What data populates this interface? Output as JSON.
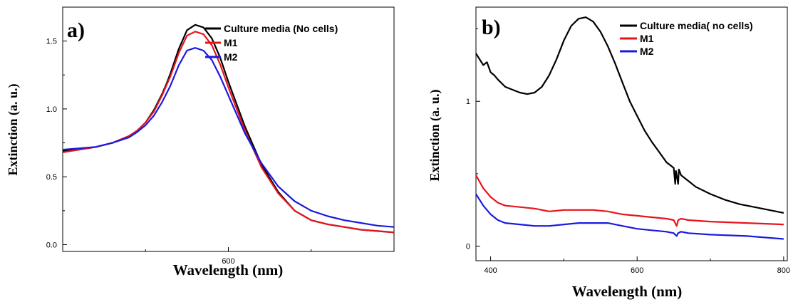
{
  "chart_data": [
    {
      "type": "line",
      "panel_label": "a)",
      "xlabel": "Wavelength (nm)",
      "ylabel": "Extinction (a. u.)",
      "xlim": [
        400,
        800
      ],
      "ylim": [
        -0.05,
        1.75
      ],
      "xticks": [
        600
      ],
      "yticks": [
        0.0,
        0.5,
        1.0,
        1.5
      ],
      "ytick_labels": [
        "0.0",
        "0.5",
        "1.0",
        "1.5"
      ],
      "legend_position": "top-right",
      "series": [
        {
          "name": "Culture media (No cells)",
          "color": "#000000",
          "x": [
            400,
            420,
            440,
            460,
            480,
            490,
            500,
            510,
            515,
            520,
            525,
            530,
            540,
            550,
            560,
            570,
            580,
            590,
            600,
            620,
            640,
            660,
            680,
            700,
            720,
            740,
            760,
            780,
            800
          ],
          "values": [
            0.69,
            0.7,
            0.72,
            0.75,
            0.8,
            0.84,
            0.9,
            0.99,
            1.05,
            1.11,
            1.18,
            1.26,
            1.44,
            1.58,
            1.62,
            1.6,
            1.52,
            1.38,
            1.2,
            0.87,
            0.59,
            0.39,
            0.25,
            0.18,
            0.15,
            0.13,
            0.11,
            0.1,
            0.09
          ]
        },
        {
          "name": "M1",
          "color": "#e8141b",
          "x": [
            400,
            420,
            440,
            460,
            480,
            490,
            500,
            510,
            515,
            520,
            525,
            530,
            540,
            550,
            560,
            570,
            580,
            590,
            600,
            620,
            640,
            660,
            680,
            700,
            720,
            740,
            760,
            780,
            800
          ],
          "values": [
            0.68,
            0.7,
            0.72,
            0.75,
            0.8,
            0.84,
            0.9,
            0.98,
            1.04,
            1.1,
            1.17,
            1.24,
            1.41,
            1.54,
            1.57,
            1.55,
            1.47,
            1.33,
            1.16,
            0.84,
            0.57,
            0.38,
            0.25,
            0.18,
            0.15,
            0.13,
            0.11,
            0.1,
            0.09
          ]
        },
        {
          "name": "M2",
          "color": "#1a1adf",
          "x": [
            400,
            420,
            440,
            460,
            480,
            490,
            500,
            510,
            515,
            520,
            525,
            530,
            540,
            550,
            560,
            570,
            580,
            590,
            600,
            620,
            640,
            660,
            680,
            700,
            720,
            740,
            760,
            780,
            800
          ],
          "values": [
            0.7,
            0.71,
            0.72,
            0.75,
            0.79,
            0.83,
            0.88,
            0.95,
            1.0,
            1.05,
            1.11,
            1.17,
            1.32,
            1.43,
            1.45,
            1.43,
            1.36,
            1.24,
            1.1,
            0.82,
            0.6,
            0.43,
            0.32,
            0.25,
            0.21,
            0.18,
            0.16,
            0.14,
            0.13
          ]
        }
      ]
    },
    {
      "type": "line",
      "panel_label": "b)",
      "xlabel": "Wavelength (nm)",
      "ylabel": "Extinction (a. u.)",
      "xlim": [
        380,
        805
      ],
      "ylim": [
        -0.1,
        1.65
      ],
      "xticks": [
        400,
        600,
        800
      ],
      "xtick_labels": [
        "400",
        "600",
        "800"
      ],
      "yticks": [
        0,
        1
      ],
      "ytick_labels": [
        "0",
        "1"
      ],
      "legend_position": "top-right",
      "series": [
        {
          "name": "Culture media( no cells)",
          "color": "#000000",
          "x": [
            380,
            385,
            390,
            395,
            400,
            405,
            410,
            420,
            430,
            440,
            450,
            460,
            470,
            480,
            490,
            500,
            510,
            520,
            530,
            540,
            550,
            560,
            570,
            580,
            590,
            600,
            610,
            620,
            630,
            640,
            650,
            652,
            653,
            656,
            657,
            660,
            670,
            680,
            700,
            720,
            740,
            760,
            780,
            800
          ],
          "values": [
            1.33,
            1.29,
            1.25,
            1.27,
            1.2,
            1.18,
            1.15,
            1.1,
            1.08,
            1.06,
            1.05,
            1.06,
            1.1,
            1.18,
            1.29,
            1.42,
            1.52,
            1.57,
            1.58,
            1.55,
            1.48,
            1.38,
            1.26,
            1.13,
            1.0,
            0.9,
            0.8,
            0.72,
            0.65,
            0.58,
            0.54,
            0.43,
            0.52,
            0.43,
            0.53,
            0.49,
            0.45,
            0.41,
            0.36,
            0.32,
            0.29,
            0.27,
            0.25,
            0.23
          ]
        },
        {
          "name": "M1",
          "color": "#e8141b",
          "x": [
            380,
            390,
            400,
            410,
            420,
            440,
            460,
            480,
            500,
            520,
            540,
            560,
            580,
            600,
            620,
            640,
            650,
            654,
            656,
            660,
            670,
            700,
            750,
            800
          ],
          "values": [
            0.49,
            0.4,
            0.34,
            0.3,
            0.28,
            0.27,
            0.26,
            0.24,
            0.25,
            0.25,
            0.25,
            0.24,
            0.22,
            0.21,
            0.2,
            0.19,
            0.18,
            0.14,
            0.18,
            0.19,
            0.18,
            0.17,
            0.16,
            0.15
          ]
        },
        {
          "name": "M2",
          "color": "#1a1adf",
          "x": [
            380,
            390,
            400,
            410,
            420,
            440,
            460,
            480,
            500,
            520,
            540,
            560,
            580,
            600,
            620,
            640,
            650,
            654,
            656,
            660,
            670,
            700,
            750,
            800
          ],
          "values": [
            0.36,
            0.28,
            0.22,
            0.18,
            0.16,
            0.15,
            0.14,
            0.14,
            0.15,
            0.16,
            0.16,
            0.16,
            0.14,
            0.12,
            0.11,
            0.1,
            0.09,
            0.07,
            0.09,
            0.1,
            0.09,
            0.08,
            0.07,
            0.05
          ]
        }
      ]
    }
  ]
}
